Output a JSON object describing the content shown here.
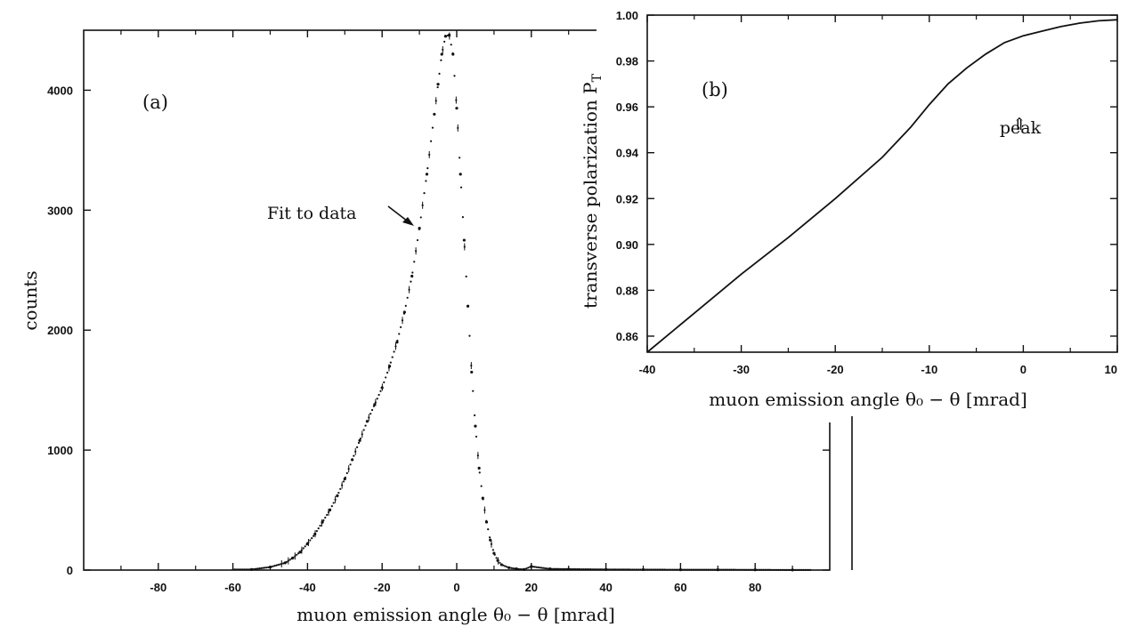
{
  "chart_data": [
    {
      "type": "scatter",
      "panel": "(a)",
      "title": "",
      "xlabel": "muon emission angle θ₀ − θ [mrad]",
      "ylabel": "counts",
      "xlim": [
        -100,
        100
      ],
      "ylim": [
        0,
        4500
      ],
      "xticks": [
        -80,
        -60,
        -40,
        -20,
        0,
        20,
        40,
        60,
        80
      ],
      "yticks": [
        0,
        1000,
        2000,
        3000,
        4000
      ],
      "annotation": "Fit to data",
      "series": [
        {
          "x": [
            -55,
            -50,
            -46,
            -44,
            -42,
            -40,
            -38,
            -36,
            -34,
            -32,
            -30,
            -28,
            -26,
            -24,
            -22,
            -20,
            -18,
            -16,
            -14,
            -12,
            -10,
            -8,
            -6,
            -5,
            -4,
            -3,
            -2,
            -1,
            0,
            1,
            2,
            3,
            4,
            5,
            6,
            7,
            8,
            9,
            10,
            11,
            12,
            14,
            16,
            18,
            20,
            25,
            30,
            40,
            50,
            60,
            70,
            80,
            90
          ],
          "y": [
            5,
            25,
            60,
            100,
            150,
            220,
            300,
            400,
            500,
            620,
            760,
            920,
            1080,
            1240,
            1380,
            1520,
            1700,
            1900,
            2150,
            2450,
            2850,
            3300,
            3800,
            4050,
            4300,
            4450,
            4460,
            4300,
            3850,
            3300,
            2750,
            2200,
            1650,
            1200,
            850,
            600,
            400,
            250,
            140,
            80,
            45,
            20,
            10,
            5,
            30,
            10,
            8,
            5,
            4,
            3,
            3,
            2,
            1
          ]
        }
      ]
    },
    {
      "type": "line",
      "panel": "(b)",
      "title": "",
      "xlabel": "muon emission angle θ₀ − θ [mrad]",
      "ylabel": "transverse polarization P",
      "ylabel_sub": "T",
      "xlim": [
        -40,
        10
      ],
      "ylim": [
        0.853,
        1.0
      ],
      "xticks": [
        -40,
        -30,
        -20,
        -10,
        0,
        10
      ],
      "yticks": [
        0.86,
        0.88,
        0.9,
        0.92,
        0.94,
        0.96,
        0.98,
        1.0
      ],
      "ytick_labels": [
        "0.86",
        "0.88",
        "0.90",
        "0.92",
        "0.94",
        "0.96",
        "0.98",
        "1.00"
      ],
      "annotation": "peak",
      "annotation_symbol": "⇑",
      "series": [
        {
          "x": [
            -40,
            -35,
            -30,
            -25,
            -20,
            -15,
            -12,
            -10,
            -8,
            -6,
            -4,
            -2,
            0,
            2,
            4,
            6,
            8,
            10
          ],
          "y": [
            0.853,
            0.87,
            0.887,
            0.903,
            0.92,
            0.938,
            0.951,
            0.961,
            0.97,
            0.977,
            0.983,
            0.988,
            0.991,
            0.993,
            0.995,
            0.9965,
            0.9975,
            0.998
          ]
        }
      ]
    }
  ]
}
